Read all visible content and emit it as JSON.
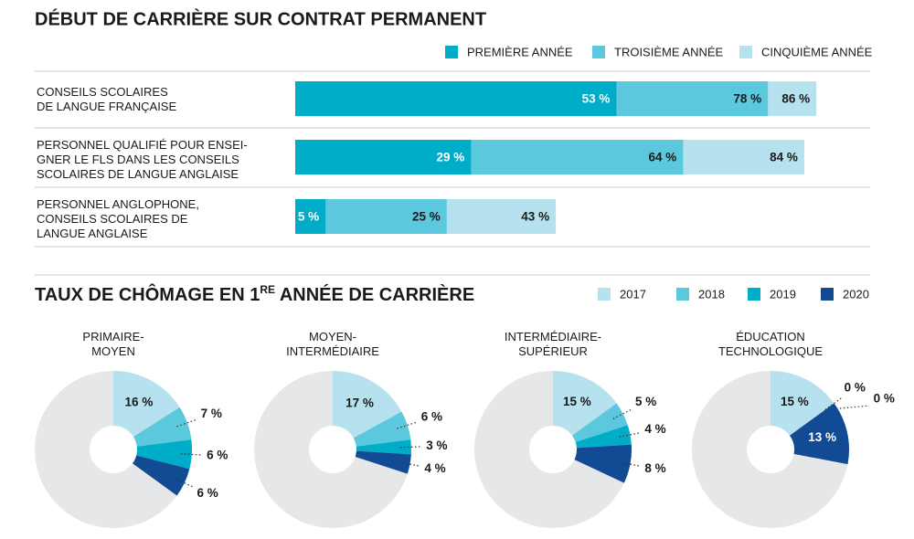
{
  "chart_data": [
    {
      "type": "bar",
      "title": "DÉBUT DE CARRIÈRE SUR CONTRAT PERMANENT",
      "categories": [
        "CONSEILS SCOLAIRES\nDE LANGUE FRANÇAISE",
        "PERSONNEL QUALIFIÉ POUR ENSEI-\nGNER LE FLS DANS LES CONSEILS\nSCOLAIRES DE LANGUE ANGLAISE",
        "PERSONNEL ANGLOPHONE,\nCONSEILS SCOLAIRES DE\nLANGUE ANGLAISE"
      ],
      "xlim": [
        0,
        100
      ],
      "series": [
        {
          "name": "PREMIÈRE ANNÉE",
          "color": "#00adc9",
          "values": [
            53,
            29,
            5
          ],
          "value_labels": [
            "53 %",
            "29 %",
            "5 %"
          ]
        },
        {
          "name": "TROISIÈME ANNÉE",
          "color": "#5bc8dd",
          "values": [
            78,
            64,
            25
          ],
          "value_labels": [
            "78 %",
            "64 %",
            "25 %"
          ]
        },
        {
          "name": "CINQUIÈME ANNÉE",
          "color": "#b5e2ee",
          "values": [
            86,
            84,
            43
          ],
          "value_labels": [
            "86 %",
            "84 %",
            "43 %"
          ]
        }
      ]
    },
    {
      "type": "pie",
      "title": [
        "TAUX DE CHÔMAGE EN 1",
        "RE",
        " ANNÉE DE CARRIÈRE"
      ],
      "categories": [
        "PRIMAIRE-\nMOYEN",
        "MOYEN-\nINTERMÉDIAIRE",
        "INTERMÉDIAIRE-\nSUPÉRIEUR",
        "ÉDUCATION\nTECHNOLOGIQUE"
      ],
      "series": [
        {
          "name": "2017",
          "color": "#b5e2ee",
          "values": [
            16,
            17,
            15,
            15
          ],
          "value_labels": [
            "16 %",
            "17 %",
            "15 %",
            "15 %"
          ]
        },
        {
          "name": "2018",
          "color": "#5bc8dd",
          "values": [
            7,
            6,
            5,
            0
          ],
          "value_labels": [
            "7 %",
            "6 %",
            "5 %",
            "0 %"
          ]
        },
        {
          "name": "2019",
          "color": "#00adc9",
          "values": [
            6,
            3,
            4,
            0
          ],
          "value_labels": [
            "6 %",
            "3 %",
            "4 %",
            "0 %"
          ]
        },
        {
          "name": "2020",
          "color": "#124a93",
          "values": [
            6,
            4,
            8,
            13
          ],
          "value_labels": [
            "6 %",
            "4 %",
            "8 %",
            "13 %"
          ]
        }
      ]
    }
  ]
}
